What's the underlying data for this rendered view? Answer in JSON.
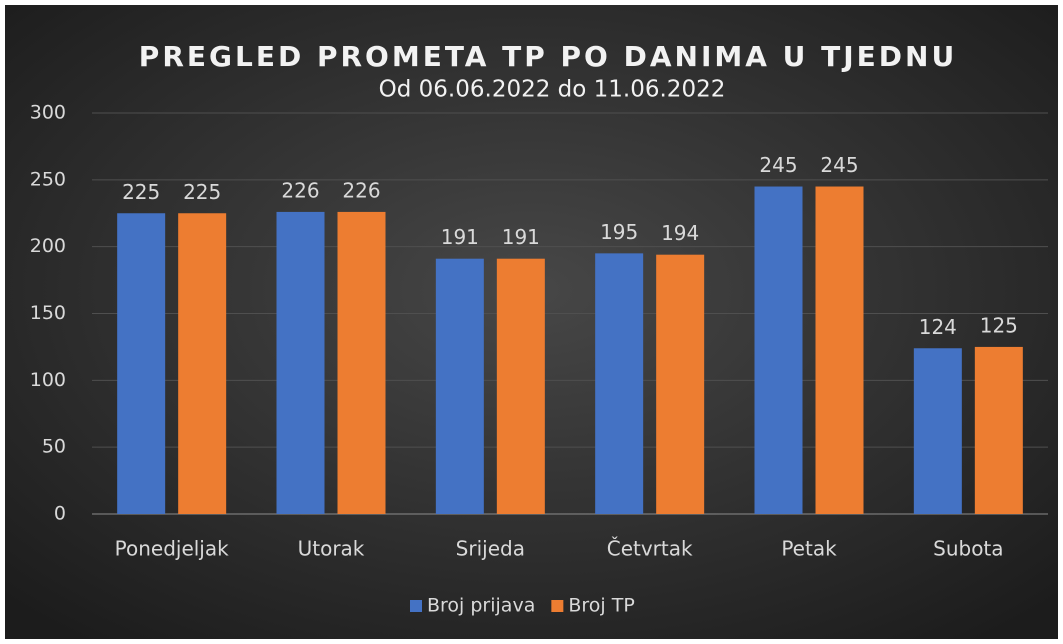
{
  "chart_data": {
    "type": "bar",
    "title": "PREGLED PROMETA TP PO DANIMA U TJEDNU",
    "subtitle": "Od 06.06.2022 do 11.06.2022",
    "categories": [
      "Ponedjeljak",
      "Utorak",
      "Srijeda",
      "Četvrtak",
      "Petak",
      "Subota"
    ],
    "series": [
      {
        "name": "Broj prijava",
        "color": "#4472c4",
        "values": [
          225,
          226,
          191,
          195,
          245,
          124
        ]
      },
      {
        "name": "Broj TP",
        "color": "#ed7d31",
        "values": [
          225,
          226,
          191,
          194,
          245,
          125
        ]
      }
    ],
    "ylim": [
      0,
      300
    ],
    "yticks": [
      0,
      50,
      100,
      150,
      200,
      250,
      300
    ],
    "grid": true,
    "legend": "bottom"
  }
}
